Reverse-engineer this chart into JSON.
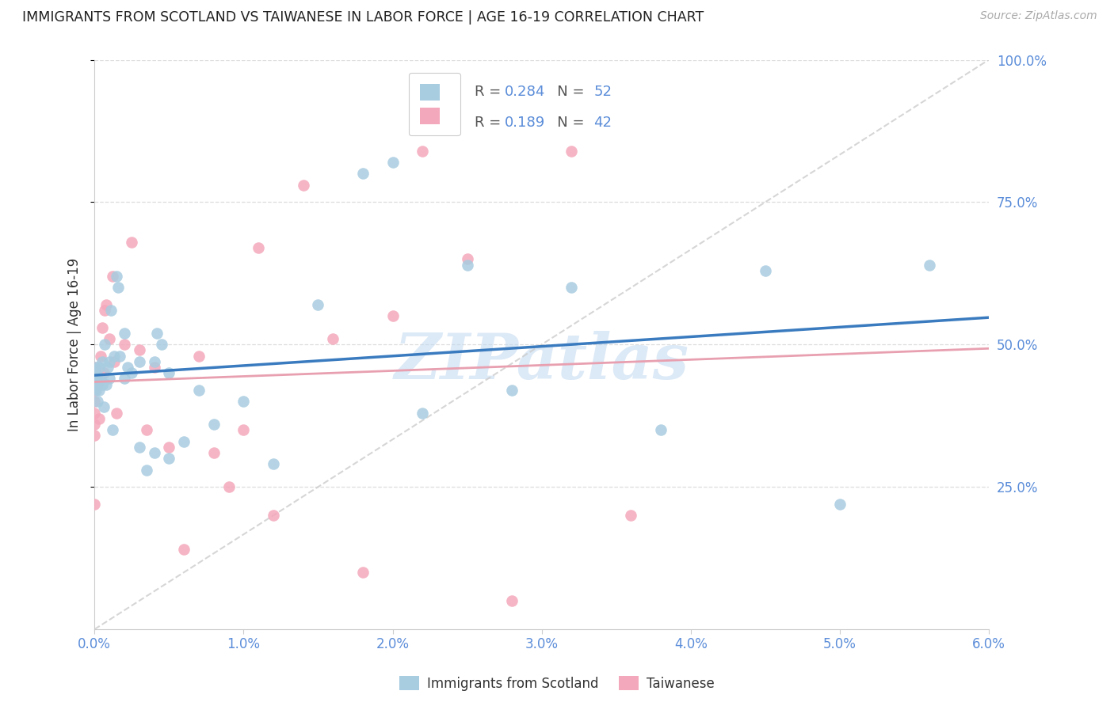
{
  "title": "IMMIGRANTS FROM SCOTLAND VS TAIWANESE IN LABOR FORCE | AGE 16-19 CORRELATION CHART",
  "source": "Source: ZipAtlas.com",
  "ylabel": "In Labor Force | Age 16-19",
  "xlim": [
    0.0,
    0.06
  ],
  "ylim": [
    0.0,
    1.0
  ],
  "xticks": [
    0.0,
    0.01,
    0.02,
    0.03,
    0.04,
    0.05,
    0.06
  ],
  "xticklabels": [
    "0.0%",
    "1.0%",
    "2.0%",
    "3.0%",
    "4.0%",
    "5.0%",
    "6.0%"
  ],
  "yticks": [
    0.25,
    0.5,
    0.75,
    1.0
  ],
  "yticklabels": [
    "25.0%",
    "50.0%",
    "75.0%",
    "100.0%"
  ],
  "scotland_color": "#a8cce0",
  "taiwanese_color": "#f4a8bb",
  "scotland_line_color": "#3a7bbf",
  "taiwanese_line_color": "#e8a0b0",
  "diagonal_line_color": "#cccccc",
  "R_scotland": "0.284",
  "N_scotland": "52",
  "R_taiwanese": "0.189",
  "N_taiwanese": "42",
  "scotland_x": [
    0.0,
    0.0,
    0.0001,
    0.0001,
    0.0002,
    0.0002,
    0.0003,
    0.0003,
    0.0004,
    0.0005,
    0.0005,
    0.0006,
    0.0007,
    0.0008,
    0.0009,
    0.001,
    0.001,
    0.0011,
    0.0012,
    0.0013,
    0.0015,
    0.0016,
    0.0017,
    0.002,
    0.002,
    0.0022,
    0.0025,
    0.003,
    0.003,
    0.0035,
    0.004,
    0.004,
    0.0042,
    0.0045,
    0.005,
    0.005,
    0.006,
    0.007,
    0.008,
    0.01,
    0.012,
    0.015,
    0.018,
    0.02,
    0.022,
    0.025,
    0.028,
    0.032,
    0.038,
    0.045,
    0.05,
    0.056
  ],
  "scotland_y": [
    0.43,
    0.45,
    0.42,
    0.46,
    0.44,
    0.4,
    0.42,
    0.46,
    0.44,
    0.43,
    0.47,
    0.39,
    0.5,
    0.43,
    0.46,
    0.47,
    0.44,
    0.56,
    0.35,
    0.48,
    0.62,
    0.6,
    0.48,
    0.44,
    0.52,
    0.46,
    0.45,
    0.47,
    0.32,
    0.28,
    0.47,
    0.31,
    0.52,
    0.5,
    0.45,
    0.3,
    0.33,
    0.42,
    0.36,
    0.4,
    0.29,
    0.57,
    0.8,
    0.82,
    0.38,
    0.64,
    0.42,
    0.6,
    0.35,
    0.63,
    0.22,
    0.64
  ],
  "taiwanese_x": [
    0.0,
    0.0,
    0.0,
    0.0,
    0.0,
    0.0,
    0.0,
    0.0,
    0.0001,
    0.0002,
    0.0003,
    0.0004,
    0.0005,
    0.0006,
    0.0007,
    0.0008,
    0.001,
    0.0012,
    0.0013,
    0.0015,
    0.002,
    0.0025,
    0.003,
    0.0035,
    0.004,
    0.005,
    0.006,
    0.007,
    0.008,
    0.009,
    0.01,
    0.011,
    0.012,
    0.014,
    0.016,
    0.018,
    0.02,
    0.022,
    0.025,
    0.028,
    0.032,
    0.036
  ],
  "taiwanese_y": [
    0.43,
    0.46,
    0.42,
    0.4,
    0.38,
    0.36,
    0.34,
    0.22,
    0.44,
    0.43,
    0.37,
    0.48,
    0.53,
    0.45,
    0.56,
    0.57,
    0.51,
    0.62,
    0.47,
    0.38,
    0.5,
    0.68,
    0.49,
    0.35,
    0.46,
    0.32,
    0.14,
    0.48,
    0.31,
    0.25,
    0.35,
    0.67,
    0.2,
    0.78,
    0.51,
    0.1,
    0.55,
    0.84,
    0.65,
    0.05,
    0.84,
    0.2
  ],
  "background_color": "#ffffff",
  "grid_color": "#dddddd",
  "tick_color": "#5b8dd9",
  "title_color": "#222222",
  "ylabel_color": "#333333",
  "watermark": "ZIPatlas",
  "watermark_color": "#c0d8f0",
  "legend_R_color": "#5b8dd9",
  "legend_N_color": "#5b8dd9"
}
